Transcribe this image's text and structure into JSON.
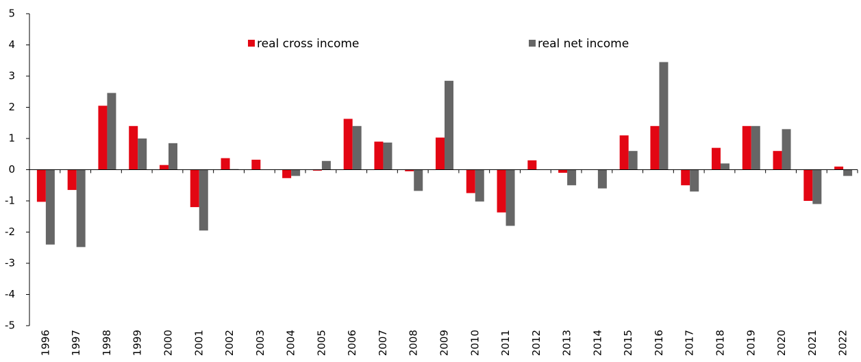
{
  "chart_data": {
    "type": "bar",
    "categories": [
      "1996",
      "1997",
      "1998",
      "1999",
      "2000",
      "2001",
      "2002",
      "2003",
      "2004",
      "2005",
      "2006",
      "2007",
      "2008",
      "2009",
      "2010",
      "2011",
      "2012",
      "2013",
      "2014",
      "2015",
      "2016",
      "2017",
      "2018",
      "2019",
      "2020",
      "2021",
      "2022"
    ],
    "series": [
      {
        "name": "real cross income",
        "color": "#e30613",
        "values": [
          -1.03,
          -0.65,
          2.05,
          1.4,
          0.15,
          -1.2,
          0.37,
          0.32,
          -0.27,
          -0.03,
          1.63,
          0.9,
          -0.05,
          1.03,
          -0.75,
          -1.37,
          0.3,
          -0.1,
          0,
          1.1,
          1.4,
          -0.5,
          0.7,
          1.4,
          0.6,
          -1.0,
          0.1
        ]
      },
      {
        "name": "real net income",
        "color": "#666666",
        "values": [
          -2.4,
          -2.48,
          2.46,
          1.0,
          0.85,
          -1.95,
          0.02,
          0,
          -0.2,
          0.28,
          1.4,
          0.87,
          -0.68,
          2.85,
          -1.02,
          -1.8,
          0,
          -0.5,
          -0.6,
          0.6,
          3.45,
          -0.7,
          0.2,
          1.4,
          1.3,
          -1.1,
          -0.2
        ]
      }
    ],
    "ylim": [
      -5,
      5
    ],
    "yticks": [
      -5,
      -4,
      -3,
      -2,
      -1,
      0,
      1,
      2,
      3,
      4,
      5
    ],
    "grid": false,
    "legend": "top"
  }
}
